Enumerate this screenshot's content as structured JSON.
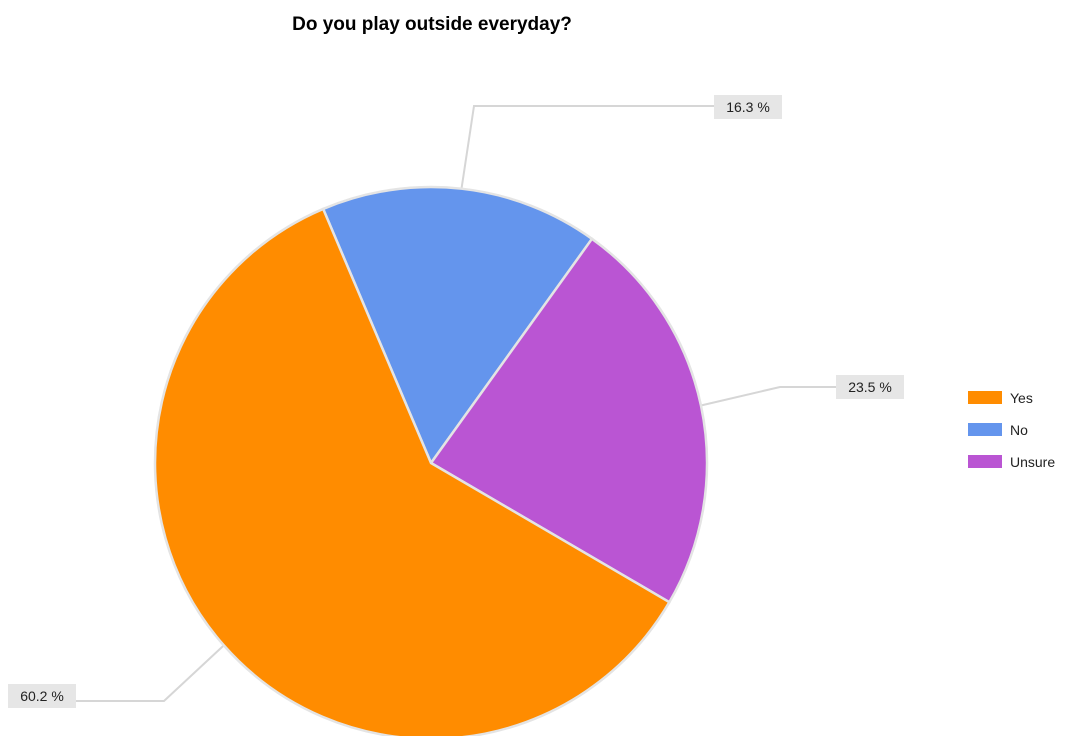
{
  "chart_data": {
    "type": "pie",
    "title": "Do you play outside everyday?",
    "slices": [
      {
        "name": "No",
        "value": 16.3,
        "label": "16.3 %",
        "color": "#6495ed"
      },
      {
        "name": "Unsure",
        "value": 23.5,
        "label": "23.5 %",
        "color": "#ba55d3"
      },
      {
        "name": "Yes",
        "value": 60.2,
        "label": "60.2 %",
        "color": "#ff8c00"
      }
    ],
    "legend": {
      "placement": "right",
      "entries": [
        {
          "name": "Yes",
          "color": "#ff8c00"
        },
        {
          "name": "No",
          "color": "#6495ed"
        },
        {
          "name": "Unsure",
          "color": "#ba55d3"
        }
      ]
    }
  }
}
